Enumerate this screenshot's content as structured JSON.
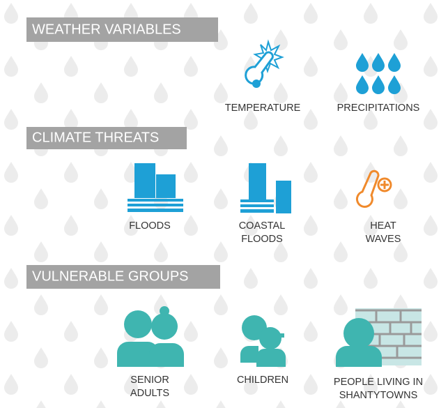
{
  "sections": [
    {
      "title": "WEATHER VARIABLES",
      "items": [
        {
          "label": [
            "TEMPERATURE"
          ]
        },
        {
          "label": [
            "PRECIPITATIONS"
          ]
        }
      ]
    },
    {
      "title": "CLIMATE THREATS",
      "items": [
        {
          "label": [
            "FLOODS"
          ]
        },
        {
          "label": [
            "COASTAL",
            "FLOODS"
          ]
        },
        {
          "label": [
            "HEAT",
            "WAVES"
          ]
        }
      ]
    },
    {
      "title": "VULNERABLE GROUPS",
      "items": [
        {
          "label": [
            "SENIOR",
            "ADULTS"
          ]
        },
        {
          "label": [
            "CHILDREN"
          ]
        },
        {
          "label": [
            "PEOPLE LIVING IN",
            "SHANTYTOWNS"
          ]
        }
      ]
    }
  ]
}
